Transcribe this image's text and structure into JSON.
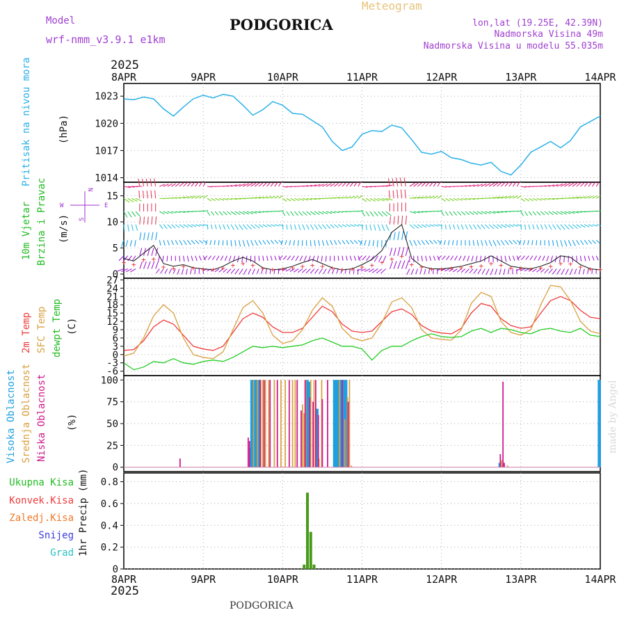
{
  "header": {
    "model_label": "Model",
    "model_name": "wrf-nmm_v3.9.1 e1km",
    "title": "PODGORICA",
    "subtitle": "Meteogram",
    "lonlat": "lon,lat (19.25E, 42.39N)",
    "elevation": "Nadmorska Visina 49m",
    "model_elevation": "Nadmorska Visina u modelu 55.035m",
    "year_top": "2025",
    "year_bottom": "2025",
    "footer": "PODGORICA",
    "credit": "made by Angel"
  },
  "colors": {
    "pressure": "#2ab0e8",
    "temp2m": "#ef3b3b",
    "sfc": "#d9a040",
    "dewpt": "#22cc22",
    "high_cloud": "#1f9fe0",
    "mid_cloud": "#d9a040",
    "low_cloud": "#d01a8a",
    "precip_total": "#4a9a1a",
    "precip_conv": "#ef3b3b",
    "precip_frozen": "#f07a2a",
    "snow": "#3b3be0",
    "hail": "#2ac0c0",
    "wind_label": "#22bb22",
    "compass": "#a030d0"
  },
  "x_ticks": [
    "8APR",
    "9APR",
    "10APR",
    "11APR",
    "12APR",
    "13APR",
    "14APR"
  ],
  "panels": {
    "pressure": {
      "label": "Pritisak na nivou mora",
      "unit": "(hPa)"
    },
    "wind": {
      "label_1": "10m Vjetar",
      "label_2": "Brzina i Pravac",
      "unit": "(m/s)",
      "compass_n": "N",
      "compass_s": "S",
      "compass_w": "W",
      "compass_e": "E"
    },
    "temp": {
      "label_1": "2m Temp",
      "label_2": "SFC Temp",
      "label_3": "dewpt Temp",
      "unit": "(C)"
    },
    "cloud": {
      "label_1": "Visoka Oblacnost",
      "label_2": "Srednja Oblacnost",
      "label_3": "Niska Oblacnost",
      "unit": "(%)"
    },
    "precip": {
      "unit": "1hr Precip (mm)",
      "legend": [
        "Ukupna Kisa",
        "Konvek.Kisa",
        "Zaledj.Kisa",
        "Snijeg",
        "Grad"
      ]
    }
  },
  "chart_data": [
    {
      "type": "line",
      "title": "Pritisak na nivou mora",
      "ylabel": "(hPa)",
      "ylim": [
        1013.5,
        1024.4
      ],
      "yticks": [
        "1014",
        "1017",
        "1020",
        "1023"
      ],
      "x_hours": [
        0,
        3,
        6,
        9,
        12,
        15,
        18,
        21,
        24,
        27,
        30,
        33,
        36,
        39,
        42,
        45,
        48,
        51,
        54,
        57,
        60,
        63,
        66,
        69,
        72,
        75,
        78,
        81,
        84,
        87,
        90,
        93,
        96,
        99,
        102,
        105,
        108,
        111,
        114,
        117,
        120,
        123,
        126,
        129,
        132,
        135,
        138,
        141,
        144
      ],
      "series": [
        {
          "values": [
            1022.7,
            1022.6,
            1022.9,
            1022.7,
            1021.6,
            1020.8,
            1021.8,
            1022.7,
            1023.1,
            1022.8,
            1023.2,
            1023.0,
            1022.0,
            1020.9,
            1021.5,
            1022.4,
            1022.0,
            1021.1,
            1021.0,
            1020.3,
            1019.6,
            1018.0,
            1017.0,
            1017.4,
            1018.8,
            1019.2,
            1019.1,
            1019.8,
            1019.5,
            1018.2,
            1016.8,
            1016.6,
            1016.9,
            1016.2,
            1016.0,
            1015.6,
            1015.4,
            1015.7,
            1014.7,
            1014.3,
            1015.4,
            1016.8,
            1017.4,
            1018.0,
            1017.3,
            1018.1,
            1019.6,
            1020.2,
            1020.8
          ]
        }
      ]
    },
    {
      "type": "line",
      "title": "10m Vjetar Brzina i Pravac",
      "ylabel": "(m/s)",
      "ylim": [
        -0.8,
        17.6
      ],
      "yticks": [
        "0",
        "5",
        "10",
        "15"
      ],
      "x_hours": [
        0,
        3,
        6,
        9,
        12,
        15,
        18,
        21,
        24,
        27,
        30,
        33,
        36,
        39,
        42,
        45,
        48,
        51,
        54,
        57,
        60,
        63,
        66,
        69,
        72,
        75,
        78,
        81,
        84,
        87,
        90,
        93,
        96,
        99,
        102,
        105,
        108,
        111,
        114,
        117,
        120,
        123,
        126,
        129,
        132,
        135,
        138,
        141,
        144
      ],
      "series": [
        {
          "values": [
            5.0,
            4.0,
            6.5,
            7.0,
            2.5,
            1.8,
            3.0,
            2.0,
            1.5,
            1.2,
            2.0,
            3.5,
            4.5,
            3.5,
            1.8,
            1.2,
            1.5,
            2.2,
            3.0,
            3.5,
            3.0,
            2.0,
            1.2,
            1.5,
            2.5,
            3.5,
            5.0,
            7.0,
            8.5,
            4.0,
            2.5,
            1.5,
            1.5,
            1.8,
            2.2,
            2.8,
            3.2,
            4.5,
            3.5,
            2.0,
            1.8,
            1.5,
            2.0,
            3.0,
            4.5,
            4.2,
            2.5,
            1.5,
            1.2
          ]
        },
        {
          "values": [
            3.0,
            2.5,
            4.0,
            5.5,
            2.0,
            1.5,
            1.8,
            1.2,
            1.0,
            0.8,
            1.5,
            2.5,
            3.2,
            2.5,
            1.2,
            0.8,
            1.0,
            1.5,
            2.2,
            2.8,
            2.0,
            1.2,
            0.8,
            1.0,
            1.8,
            2.8,
            4.5,
            8.0,
            9.5,
            3.0,
            1.5,
            1.0,
            1.0,
            1.2,
            1.5,
            2.0,
            2.5,
            3.5,
            2.5,
            1.5,
            1.2,
            1.0,
            1.5,
            2.2,
            3.5,
            3.2,
            1.8,
            1.0,
            0.8
          ]
        }
      ]
    },
    {
      "type": "line",
      "title": "2m Temp / SFC Temp / dewpt Temp",
      "ylabel": "(C)",
      "ylim": [
        -7.6,
        27.6
      ],
      "yticks": [
        "-6",
        "-3",
        "0",
        "3",
        "6",
        "9",
        "12",
        "15",
        "18",
        "21",
        "24",
        "27"
      ],
      "x_hours": [
        0,
        3,
        6,
        9,
        12,
        15,
        18,
        21,
        24,
        27,
        30,
        33,
        36,
        39,
        42,
        45,
        48,
        51,
        54,
        57,
        60,
        63,
        66,
        69,
        72,
        75,
        78,
        81,
        84,
        87,
        90,
        93,
        96,
        99,
        102,
        105,
        108,
        111,
        114,
        117,
        120,
        123,
        126,
        129,
        132,
        135,
        138,
        141,
        144
      ],
      "series": [
        {
          "name": "2m Temp",
          "values": [
            1.5,
            1.8,
            5.0,
            10.0,
            12.5,
            11.0,
            7.0,
            3.0,
            2.0,
            1.5,
            3.0,
            8.0,
            13.0,
            15.0,
            13.5,
            10.0,
            8.0,
            8.0,
            9.5,
            13.5,
            17.5,
            15.5,
            11.0,
            8.5,
            8.0,
            8.5,
            12.0,
            15.5,
            16.5,
            14.5,
            10.5,
            8.5,
            7.8,
            7.5,
            9.5,
            15.0,
            18.5,
            17.5,
            13.0,
            10.5,
            9.5,
            10.0,
            15.0,
            19.5,
            21.0,
            19.5,
            16.0,
            13.5,
            13.0
          ]
        },
        {
          "name": "SFC Temp",
          "values": [
            -0.5,
            0.5,
            6.0,
            14.0,
            18.0,
            15.0,
            6.0,
            0.0,
            -1.0,
            -1.5,
            1.0,
            9.0,
            17.0,
            19.5,
            15.0,
            7.0,
            4.0,
            5.0,
            9.0,
            16.0,
            20.5,
            17.5,
            9.5,
            6.0,
            5.0,
            6.0,
            11.5,
            19.0,
            20.5,
            17.0,
            9.0,
            6.0,
            5.5,
            5.2,
            9.0,
            18.5,
            22.5,
            21.0,
            12.0,
            8.0,
            7.0,
            9.0,
            18.0,
            25.0,
            24.5,
            19.5,
            12.0,
            8.5,
            7.5
          ]
        },
        {
          "name": "dewpt Temp",
          "values": [
            -3.0,
            -5.5,
            -4.5,
            -2.5,
            -3.0,
            -1.5,
            -3.0,
            -3.5,
            -2.5,
            -2.0,
            -2.5,
            -1.0,
            1.0,
            3.0,
            2.5,
            3.0,
            2.5,
            3.0,
            3.5,
            5.0,
            6.0,
            4.5,
            3.0,
            3.0,
            2.0,
            -2.0,
            1.5,
            3.0,
            3.0,
            5.0,
            6.5,
            7.5,
            6.5,
            6.2,
            6.5,
            8.5,
            9.5,
            8.0,
            9.5,
            9.0,
            8.0,
            7.5,
            9.0,
            9.5,
            8.5,
            8.0,
            9.5,
            7.0,
            6.5
          ]
        }
      ]
    },
    {
      "type": "bar",
      "title": "Visoka / Srednja / Niska Oblacnost",
      "ylabel": "(%)",
      "ylim": [
        -5,
        105
      ],
      "yticks": [
        "0",
        "25",
        "50",
        "75",
        "100"
      ],
      "series": [
        {
          "name": "Visoka Oblacnost",
          "x_hours": [
            38.2,
            38.6,
            39.0,
            39.4,
            39.8,
            40.2,
            40.6,
            41.0,
            55.5,
            56.0,
            58.5,
            63.6,
            64.0,
            64.4,
            64.8,
            65.2,
            65.6,
            66.0,
            66.4,
            66.8,
            67.2,
            113.6,
            143.6,
            143.8
          ],
          "values": [
            22,
            100,
            100,
            100,
            100,
            100,
            100,
            100,
            100,
            98,
            67,
            100,
            100,
            100,
            100,
            100,
            100,
            100,
            100,
            100,
            100,
            5,
            100,
            100
          ]
        },
        {
          "name": "Srednja Oblacnost",
          "x_hours": [
            39.2,
            40.4,
            41.4,
            42.0,
            42.8,
            43.8,
            45.5,
            47.5,
            48.8,
            51.0,
            51.8,
            54.0,
            54.5,
            55.0,
            56.5,
            57.5,
            59.0,
            59.8,
            65.2,
            66.8,
            67.6,
            68.2,
            68.8,
            114.2,
            116.0
          ],
          "values": [
            100,
            100,
            100,
            100,
            100,
            100,
            100,
            100,
            100,
            100,
            100,
            72,
            62,
            100,
            100,
            100,
            10,
            100,
            100,
            55,
            80,
            100,
            2,
            8,
            2
          ]
        },
        {
          "name": "Niska Oblacnost",
          "x_hours": [
            37.6,
            38.0,
            41.2,
            42.4,
            44.2,
            46.4,
            50.0,
            52.4,
            53.6,
            54.8,
            56.2,
            57.2,
            58.0,
            58.8,
            60.0,
            61.6,
            66.0,
            67.8,
            17.0,
            113.8,
            114.6,
            115.0
          ],
          "values": [
            34,
            30,
            100,
            100,
            100,
            100,
            100,
            100,
            65,
            100,
            80,
            75,
            100,
            60,
            78,
            100,
            100,
            75,
            10,
            15,
            98,
            5
          ]
        }
      ]
    },
    {
      "type": "bar",
      "title": "1hr Precip",
      "ylabel": "1hr Precip (mm)",
      "ylim": [
        0,
        0.88
      ],
      "yticks": [
        "0",
        "0.2",
        "0.4",
        "0.6",
        "0.8"
      ],
      "series": [
        {
          "name": "Ukupna Kisa",
          "x_hours": [
            54.5,
            55.5,
            56.5,
            57.5
          ],
          "values": [
            0.04,
            0.7,
            0.34,
            0.04
          ]
        }
      ]
    }
  ]
}
